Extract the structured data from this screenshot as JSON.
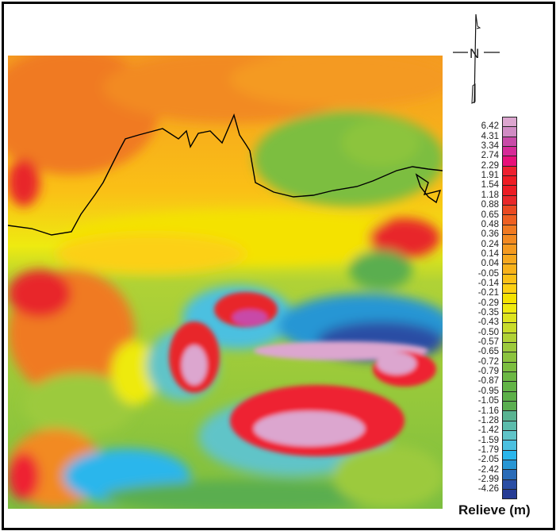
{
  "legend": {
    "title": "Relieve (m)",
    "labels": [
      "6.42",
      "4.31",
      "3.34",
      "2.74",
      "2.29",
      "1.91",
      "1.54",
      "1.18",
      "0.88",
      "0.65",
      "0.48",
      "0.36",
      "0.24",
      "0.14",
      "0.04",
      "-0.05",
      "-0.14",
      "-0.21",
      "-0.29",
      "-0.35",
      "-0.43",
      "-0.50",
      "-0.57",
      "-0.65",
      "-0.72",
      "-0.79",
      "-0.87",
      "-0.95",
      "-1.05",
      "-1.16",
      "-1.28",
      "-1.42",
      "-1.59",
      "-1.79",
      "-2.05",
      "-2.42",
      "-2.99",
      "-4.26"
    ],
    "colors": [
      "#dca6cf",
      "#d08cc4",
      "#c84aa8",
      "#d62a98",
      "#e8107a",
      "#ee2030",
      "#ee1c24",
      "#ec1c24",
      "#e8282a",
      "#ea4a22",
      "#ee6022",
      "#f07a22",
      "#f28a22",
      "#f49a20",
      "#f6a81e",
      "#f8b21a",
      "#fac016",
      "#fcd012",
      "#f4e200",
      "#eeea10",
      "#dde41e",
      "#c8dc2a",
      "#b0d236",
      "#9cca3c",
      "#8cc43e",
      "#7cbe40",
      "#6cb844",
      "#62b446",
      "#5cb048",
      "#5aae50",
      "#5ab492",
      "#5cbcac",
      "#60c4c8",
      "#4cc0e0",
      "#2ab6ec",
      "#2896d4",
      "#2a6cb8",
      "#2a4ea4",
      "#263c94"
    ]
  },
  "north_arrow": {
    "label": "N",
    "icon": "north-arrow-icon"
  }
}
